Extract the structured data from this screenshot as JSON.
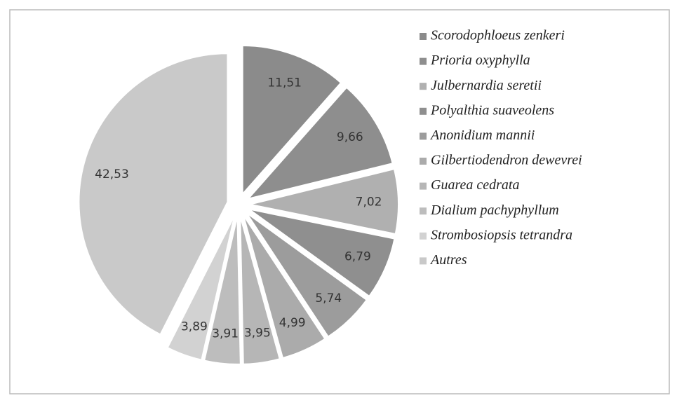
{
  "chart_data": {
    "type": "pie",
    "categories": [
      "Scorodophloeus zenkeri",
      "Prioria oxyphylla",
      "Julbernardia seretii",
      "Polyalthia suaveolens",
      "Anonidium mannii",
      "Gilbertiodendron dewevrei",
      "Guarea cedrata",
      "Dialium pachyphyllum",
      "Strombosiopsis tetrandra",
      "Autres"
    ],
    "values": [
      11.51,
      9.66,
      7.02,
      6.79,
      5.74,
      4.99,
      3.95,
      3.91,
      3.89,
      42.53
    ],
    "value_labels": [
      "11,51",
      "9,66",
      "7,02",
      "6,79",
      "5,74",
      "4,99",
      "3,95",
      "3,91",
      "3,89",
      "42,53"
    ],
    "colors": [
      "#8b8b8b",
      "#8e8e8e",
      "#b0b0b0",
      "#8f8f8f",
      "#9c9c9c",
      "#ababab",
      "#b6b6b6",
      "#bdbdbd",
      "#d2d2d2",
      "#c9c9c9"
    ],
    "legend": "right"
  }
}
